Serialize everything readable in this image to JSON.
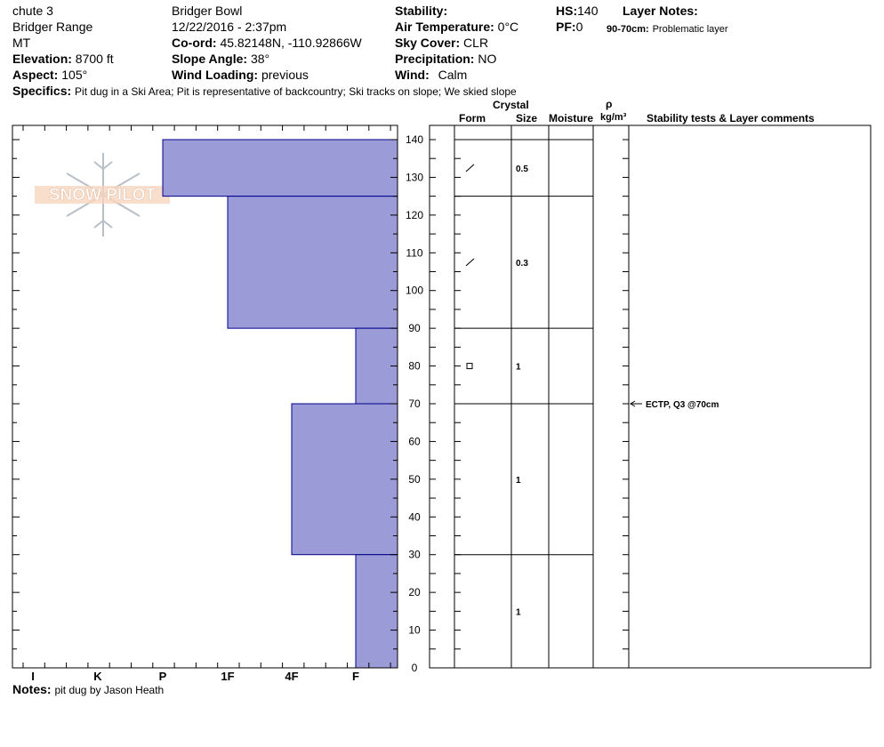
{
  "header": {
    "pit_name": "chute 3",
    "range": "Bridger Range",
    "state": "MT",
    "elevation_label": "Elevation:",
    "elevation": "8700 ft",
    "aspect_label": "Aspect:",
    "aspect": "105°",
    "location": "Bridger Bowl",
    "datetime": "12/22/2016 - 2:37pm",
    "coord_label": "Co-ord:",
    "coord": "45.82148N, -110.92866W",
    "slope_label": "Slope Angle:",
    "slope": "38°",
    "wind_loading_label": "Wind Loading:",
    "wind_loading": "previous",
    "stability_label": "Stability:",
    "stability": "",
    "air_temp_label": "Air Temperature:",
    "air_temp": "0°C",
    "sky_label": "Sky Cover:",
    "sky": "CLR",
    "precip_label": "Precipitation:",
    "precip": "NO",
    "wind_label": "Wind:",
    "wind": "Calm",
    "hs_label": "HS:",
    "hs": "140",
    "pf_label": "PF:",
    "pf": "0",
    "layer_notes_label": "Layer Notes:",
    "layer_note_range": "90-70cm:",
    "layer_note_text": "Problematic layer",
    "specifics_label": "Specifics:",
    "specifics": "Pit dug in a Ski Area; Pit is representative of backcountry; Ski tracks on slope; We skied slope"
  },
  "footer": {
    "notes_label": "Notes:",
    "notes": "pit dug by Jason Heath"
  },
  "logo_text": "SNOW PILOT",
  "colors": {
    "hardness_fill": "#9b9bd7",
    "hardness_stroke": "#00008b"
  },
  "table_headers": {
    "form": "Form",
    "crystal": "Crystal",
    "size": "Size",
    "moisture": "Moisture",
    "rho": "ρ",
    "density_unit": "kg/m³",
    "stability": "Stability tests & Layer comments"
  },
  "chart_data": {
    "type": "bar",
    "title": "",
    "xlabel": "",
    "ylabel": "",
    "x_ticks": [
      "I",
      "K",
      "P",
      "1F",
      "4F",
      "F"
    ],
    "ylim": [
      0,
      140
    ],
    "y_ticks": [
      0,
      10,
      20,
      30,
      40,
      50,
      60,
      70,
      80,
      90,
      100,
      110,
      120,
      130,
      140
    ],
    "hardness_layers": [
      {
        "top": 140,
        "bottom": 125,
        "hardness": "P"
      },
      {
        "top": 125,
        "bottom": 90,
        "hardness": "1F"
      },
      {
        "top": 90,
        "bottom": 70,
        "hardness": "F"
      },
      {
        "top": 70,
        "bottom": 30,
        "hardness": "4F"
      },
      {
        "top": 30,
        "bottom": 0,
        "hardness": "F"
      }
    ],
    "layer_boundaries": [
      140,
      125,
      90,
      70,
      30,
      0
    ],
    "crystal_layers": [
      {
        "depth": 132.5,
        "form": "decomposing-fragments",
        "size": "0.5"
      },
      {
        "depth": 107.5,
        "form": "decomposing-fragments",
        "size": "0.3"
      },
      {
        "depth": 80,
        "form": "faceted-rounded",
        "size": "1"
      },
      {
        "depth": 50,
        "form": "",
        "size": "1"
      },
      {
        "depth": 15,
        "form": "",
        "size": "1"
      }
    ],
    "tests": [
      {
        "depth": 70,
        "text": "ECTP, Q3 @70cm"
      }
    ]
  }
}
